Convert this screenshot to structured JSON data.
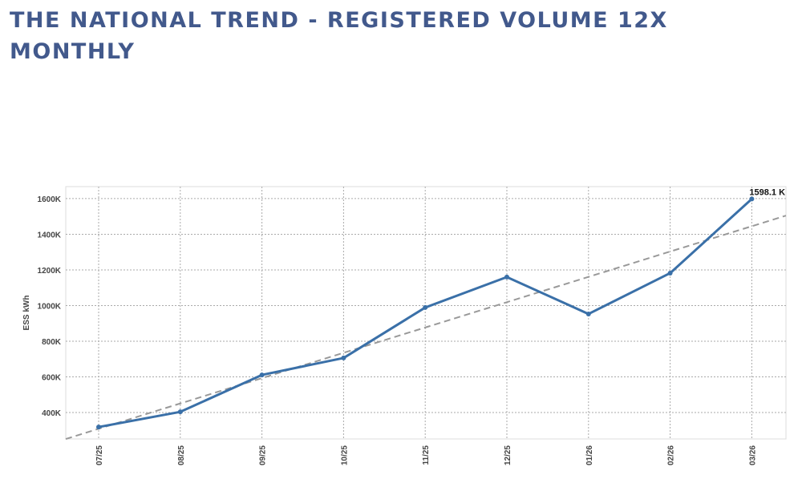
{
  "title": "THE NATIONAL TREND - REGISTERED VOLUME 12X MONTHLY",
  "chart_data": {
    "type": "line",
    "title": "THE NATIONAL TREND - REGISTERED VOLUME 12X MONTHLY",
    "xlabel": "",
    "ylabel": "ESS kWh",
    "categories": [
      "07/25",
      "08/25",
      "09/25",
      "10/25",
      "11/25",
      "12/25",
      "01/26",
      "02/26",
      "03/26"
    ],
    "series": [
      {
        "name": "ESS kWh",
        "color": "#3a70a8",
        "values": [
          319,
          404,
          611,
          706,
          989,
          1160,
          953,
          1182,
          1598.1
        ]
      }
    ],
    "trendline": {
      "color": "#999999",
      "style": "dashed",
      "intercept": 309,
      "slope_per_month": 142
    },
    "annotation": "1598.1 K",
    "yticks": [
      400,
      600,
      800,
      1000,
      1200,
      1400,
      1600
    ],
    "ytick_labels": [
      "400K",
      "600K",
      "800K",
      "1000K",
      "1200K",
      "1400K",
      "1600K"
    ],
    "ylim": [
      252,
      1667
    ],
    "grid": true,
    "legend": "none"
  }
}
